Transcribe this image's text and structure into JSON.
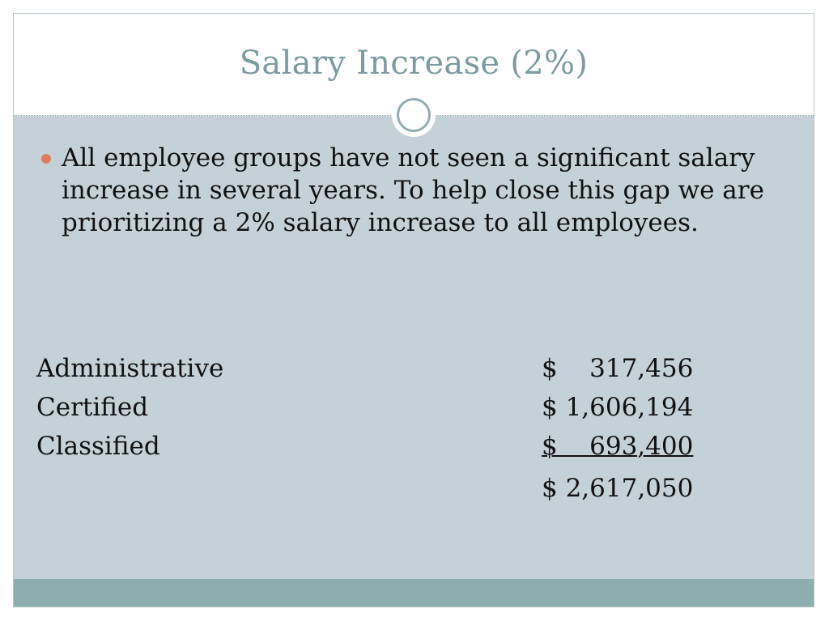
{
  "slide": {
    "title": "Salary Increase (2%)",
    "bullets": [
      "All employee groups have not seen a significant salary increase in several years. To help close this gap we are prioritizing  a 2% salary increase to all employees."
    ],
    "rows": [
      {
        "label": "Administrative",
        "value": "$    317,456"
      },
      {
        "label": "Certified",
        "value": "$ 1,606,194"
      },
      {
        "label": "Classified",
        "value": "$    693,400"
      }
    ],
    "total": "$ 2,617,050"
  },
  "colors": {
    "title": "#7b9ba0",
    "content_background": "#c5d1d8",
    "bullet": "#e07c5e",
    "footer": "#8caeae"
  }
}
